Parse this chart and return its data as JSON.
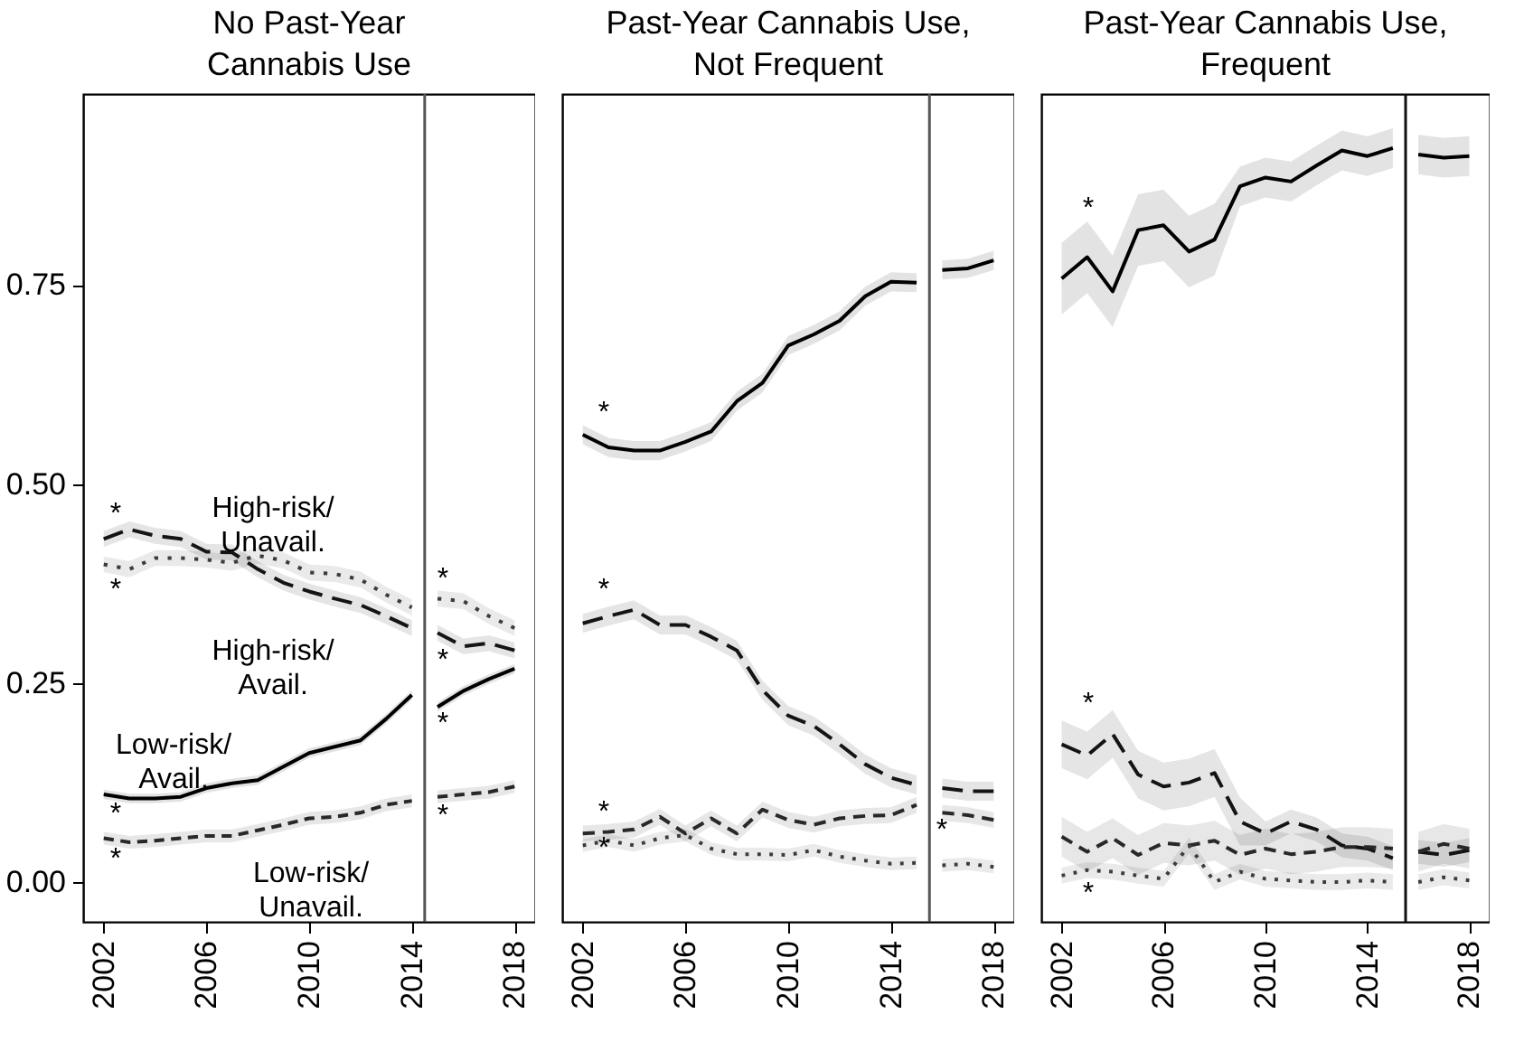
{
  "chart_data": [
    {
      "type": "line",
      "title": "No Past-Year\nCannabis Use",
      "x": [
        2002,
        2003,
        2004,
        2005,
        2006,
        2007,
        2008,
        2009,
        2010,
        2011,
        2012,
        2013,
        2014,
        2015,
        2016,
        2017,
        2018
      ],
      "xlim": [
        2001.2,
        2018.8
      ],
      "xticks": [
        2002,
        2006,
        2010,
        2014,
        2018
      ],
      "ylim": [
        -0.05,
        0.99
      ],
      "yticks": [
        {
          "value": 0,
          "label": "0.00"
        },
        {
          "value": 0.25,
          "label": "0.25"
        },
        {
          "value": 0.5,
          "label": "0.50"
        },
        {
          "value": 0.75,
          "label": "0.75"
        }
      ],
      "ref_lines": [
        {
          "axis": "x",
          "value": 2014.5,
          "color": "#555555"
        }
      ],
      "series": [
        {
          "color": "#000000",
          "line_style": "solid",
          "values": [
            0.11,
            0.105,
            0.105,
            0.107,
            0.118,
            0.124,
            0.128,
            0.145,
            0.162,
            0.17,
            0.178,
            0.205,
            0.235,
            0.22,
            0.24,
            0.255,
            0.268
          ],
          "lower": [
            0.104,
            0.099,
            0.099,
            0.101,
            0.112,
            0.118,
            0.122,
            0.139,
            0.156,
            0.164,
            0.172,
            0.199,
            0.229,
            0.214,
            0.234,
            0.249,
            0.262
          ],
          "upper": [
            0.116,
            0.111,
            0.111,
            0.113,
            0.124,
            0.13,
            0.134,
            0.151,
            0.168,
            0.176,
            0.184,
            0.211,
            0.241,
            0.226,
            0.246,
            0.261,
            0.274
          ]
        },
        {
          "color": "#141414",
          "line_style": "dashed",
          "values": [
            0.431,
            0.443,
            0.435,
            0.431,
            0.415,
            0.414,
            0.393,
            0.376,
            0.365,
            0.356,
            0.348,
            0.334,
            0.319,
            0.313,
            0.296,
            0.3,
            0.291
          ],
          "lower": [
            0.421,
            0.433,
            0.425,
            0.421,
            0.405,
            0.404,
            0.383,
            0.366,
            0.355,
            0.346,
            0.338,
            0.324,
            0.309,
            0.303,
            0.286,
            0.29,
            0.281
          ],
          "upper": [
            0.441,
            0.453,
            0.445,
            0.441,
            0.425,
            0.424,
            0.403,
            0.386,
            0.375,
            0.366,
            0.358,
            0.344,
            0.329,
            0.323,
            0.306,
            0.31,
            0.301
          ]
        },
        {
          "color": "#282828",
          "line_style": "dashed",
          "values": [
            0.055,
            0.05,
            0.052,
            0.055,
            0.058,
            0.058,
            0.065,
            0.072,
            0.08,
            0.082,
            0.087,
            0.097,
            0.102,
            0.107,
            0.11,
            0.113,
            0.12
          ],
          "lower": [
            0.047,
            0.042,
            0.044,
            0.047,
            0.05,
            0.05,
            0.057,
            0.064,
            0.072,
            0.074,
            0.079,
            0.089,
            0.094,
            0.099,
            0.102,
            0.105,
            0.112
          ],
          "upper": [
            0.063,
            0.058,
            0.06,
            0.063,
            0.066,
            0.066,
            0.073,
            0.08,
            0.088,
            0.09,
            0.095,
            0.105,
            0.11,
            0.115,
            0.118,
            0.121,
            0.128
          ]
        },
        {
          "color": "#3c3c3c",
          "line_style": "dotted",
          "values": [
            0.399,
            0.393,
            0.407,
            0.407,
            0.405,
            0.401,
            0.41,
            0.404,
            0.389,
            0.387,
            0.38,
            0.361,
            0.345,
            0.356,
            0.353,
            0.334,
            0.319
          ],
          "lower": [
            0.389,
            0.383,
            0.397,
            0.397,
            0.395,
            0.391,
            0.4,
            0.394,
            0.379,
            0.377,
            0.37,
            0.351,
            0.335,
            0.346,
            0.343,
            0.324,
            0.309
          ],
          "upper": [
            0.409,
            0.403,
            0.417,
            0.417,
            0.415,
            0.411,
            0.42,
            0.414,
            0.399,
            0.397,
            0.39,
            0.371,
            0.355,
            0.366,
            0.363,
            0.344,
            0.329
          ]
        }
      ],
      "annotations": [
        "High-risk/\nUnavail.",
        "High-risk/\nAvail.",
        "Low-risk/\nAvail.",
        "Low-risk/\nUnavail.",
        "*",
        "*",
        "*",
        "*",
        "*",
        "*",
        "*",
        "*"
      ]
    },
    {
      "type": "line",
      "title": "Past-Year Cannabis Use,\nNot Frequent",
      "x": [
        2002,
        2003,
        2004,
        2005,
        2006,
        2007,
        2008,
        2009,
        2010,
        2011,
        2012,
        2013,
        2014,
        2015,
        2016,
        2017,
        2018
      ],
      "xlim": [
        2001.2,
        2018.8
      ],
      "xticks": [
        2002,
        2006,
        2010,
        2014,
        2018
      ],
      "ylim": [
        -0.05,
        0.99
      ],
      "tick_labels": "x",
      "ref_lines": [
        {
          "axis": "x",
          "value": 2015.5,
          "color": "#555555"
        }
      ],
      "series": [
        {
          "color": "#000000",
          "line_style": "solid",
          "values": [
            0.562,
            0.546,
            0.542,
            0.542,
            0.553,
            0.566,
            0.604,
            0.627,
            0.674,
            0.688,
            0.705,
            0.736,
            0.754,
            0.753,
            0.769,
            0.771,
            0.781
          ],
          "lower": [
            0.55,
            0.534,
            0.53,
            0.53,
            0.541,
            0.554,
            0.592,
            0.615,
            0.662,
            0.676,
            0.693,
            0.724,
            0.742,
            0.741,
            0.757,
            0.759,
            0.769
          ],
          "upper": [
            0.574,
            0.558,
            0.554,
            0.554,
            0.565,
            0.578,
            0.616,
            0.639,
            0.686,
            0.7,
            0.717,
            0.748,
            0.766,
            0.765,
            0.781,
            0.783,
            0.793
          ]
        },
        {
          "color": "#141414",
          "line_style": "dashed",
          "values": [
            0.325,
            0.334,
            0.342,
            0.323,
            0.323,
            0.308,
            0.291,
            0.241,
            0.209,
            0.196,
            0.173,
            0.148,
            0.131,
            0.122,
            0.118,
            0.114,
            0.114
          ],
          "lower": [
            0.313,
            0.322,
            0.33,
            0.311,
            0.311,
            0.296,
            0.279,
            0.229,
            0.197,
            0.184,
            0.161,
            0.136,
            0.119,
            0.11,
            0.106,
            0.102,
            0.102
          ],
          "upper": [
            0.337,
            0.346,
            0.354,
            0.335,
            0.335,
            0.32,
            0.303,
            0.253,
            0.221,
            0.208,
            0.185,
            0.16,
            0.143,
            0.134,
            0.13,
            0.126,
            0.126
          ]
        },
        {
          "color": "#282828",
          "line_style": "dashed",
          "values": [
            0.061,
            0.063,
            0.066,
            0.082,
            0.061,
            0.08,
            0.061,
            0.091,
            0.078,
            0.072,
            0.08,
            0.083,
            0.084,
            0.097,
            0.087,
            0.084,
            0.078
          ],
          "lower": [
            0.051,
            0.053,
            0.056,
            0.072,
            0.051,
            0.07,
            0.051,
            0.081,
            0.068,
            0.062,
            0.07,
            0.073,
            0.074,
            0.087,
            0.077,
            0.074,
            0.068
          ],
          "upper": [
            0.071,
            0.073,
            0.076,
            0.092,
            0.071,
            0.09,
            0.071,
            0.101,
            0.088,
            0.082,
            0.09,
            0.093,
            0.094,
            0.107,
            0.097,
            0.094,
            0.088
          ]
        },
        {
          "color": "#3c3c3c",
          "line_style": "dotted",
          "values": [
            0.046,
            0.052,
            0.046,
            0.055,
            0.059,
            0.042,
            0.035,
            0.035,
            0.034,
            0.04,
            0.032,
            0.027,
            0.023,
            0.024,
            0.021,
            0.023,
            0.019
          ],
          "lower": [
            0.038,
            0.044,
            0.038,
            0.047,
            0.051,
            0.034,
            0.027,
            0.027,
            0.026,
            0.032,
            0.024,
            0.019,
            0.015,
            0.016,
            0.013,
            0.015,
            0.011
          ],
          "upper": [
            0.054,
            0.06,
            0.054,
            0.063,
            0.067,
            0.05,
            0.043,
            0.043,
            0.042,
            0.048,
            0.04,
            0.035,
            0.031,
            0.032,
            0.029,
            0.031,
            0.027
          ]
        }
      ],
      "annotations": [
        "*",
        "*",
        "*",
        "*",
        "*"
      ]
    },
    {
      "type": "line",
      "title": "Past-Year Cannabis Use,\nFrequent",
      "x": [
        2002,
        2003,
        2004,
        2005,
        2006,
        2007,
        2008,
        2009,
        2010,
        2011,
        2012,
        2013,
        2014,
        2015,
        2016,
        2017,
        2018
      ],
      "xlim": [
        2001.2,
        2018.8
      ],
      "xticks": [
        2002,
        2006,
        2010,
        2014,
        2018
      ],
      "ylim": [
        -0.05,
        0.99
      ],
      "tick_labels": "x",
      "ref_lines": [
        {
          "axis": "x",
          "value": 2015.5,
          "color": "#111111"
        }
      ],
      "series": [
        {
          "color": "#000000",
          "line_style": "solid",
          "values": [
            0.758,
            0.785,
            0.742,
            0.819,
            0.825,
            0.792,
            0.807,
            0.874,
            0.885,
            0.88,
            0.9,
            0.919,
            0.912,
            0.922,
            0.914,
            0.91,
            0.912
          ],
          "lower": [
            0.713,
            0.74,
            0.697,
            0.774,
            0.78,
            0.747,
            0.762,
            0.849,
            0.86,
            0.855,
            0.875,
            0.894,
            0.887,
            0.897,
            0.889,
            0.885,
            0.887
          ],
          "upper": [
            0.803,
            0.83,
            0.787,
            0.864,
            0.87,
            0.837,
            0.852,
            0.899,
            0.91,
            0.905,
            0.925,
            0.944,
            0.937,
            0.947,
            0.939,
            0.935,
            0.937
          ]
        },
        {
          "color": "#141414",
          "line_style": "dashed",
          "values": [
            0.173,
            0.159,
            0.186,
            0.135,
            0.12,
            0.125,
            0.137,
            0.076,
            0.061,
            0.076,
            0.066,
            0.046,
            0.042,
            0.03,
            0.038,
            0.034,
            0.04
          ],
          "lower": [
            0.143,
            0.129,
            0.156,
            0.105,
            0.09,
            0.095,
            0.107,
            0.046,
            0.046,
            0.061,
            0.051,
            0.031,
            0.027,
            0.015,
            0.023,
            0.019,
            0.025
          ],
          "upper": [
            0.203,
            0.189,
            0.216,
            0.165,
            0.15,
            0.155,
            0.167,
            0.106,
            0.076,
            0.091,
            0.081,
            0.061,
            0.057,
            0.045,
            0.053,
            0.049,
            0.055
          ]
        },
        {
          "color": "#282828",
          "line_style": "dashed",
          "values": [
            0.057,
            0.038,
            0.055,
            0.034,
            0.049,
            0.046,
            0.052,
            0.034,
            0.042,
            0.035,
            0.038,
            0.044,
            0.044,
            0.042,
            0.038,
            0.048,
            0.042
          ],
          "lower": [
            0.032,
            0.013,
            0.03,
            0.009,
            0.024,
            0.021,
            0.027,
            0.009,
            0.017,
            0.01,
            0.013,
            0.019,
            0.019,
            0.017,
            0.013,
            0.023,
            0.017
          ],
          "upper": [
            0.082,
            0.063,
            0.08,
            0.059,
            0.074,
            0.071,
            0.077,
            0.059,
            0.067,
            0.06,
            0.063,
            0.069,
            0.069,
            0.067,
            0.063,
            0.073,
            0.067
          ]
        },
        {
          "color": "#3c3c3c",
          "line_style": "dotted",
          "values": [
            0.008,
            0.015,
            0.013,
            0.008,
            0.004,
            0.046,
            0.0,
            0.013,
            0.004,
            0.002,
            0.0,
            0.0,
            0.002,
            0.0,
            0.0,
            0.006,
            0.002
          ],
          "lower": [
            -0.002,
            0.005,
            0.003,
            -0.002,
            -0.006,
            0.036,
            -0.01,
            0.003,
            -0.006,
            -0.008,
            -0.01,
            -0.01,
            -0.008,
            -0.01,
            -0.01,
            -0.004,
            -0.008
          ],
          "upper": [
            0.018,
            0.025,
            0.023,
            0.018,
            0.014,
            0.056,
            0.01,
            0.023,
            0.014,
            0.012,
            0.01,
            0.01,
            0.012,
            0.01,
            0.01,
            0.016,
            0.012
          ]
        }
      ],
      "annotations": [
        "*",
        "*",
        "*"
      ]
    }
  ]
}
